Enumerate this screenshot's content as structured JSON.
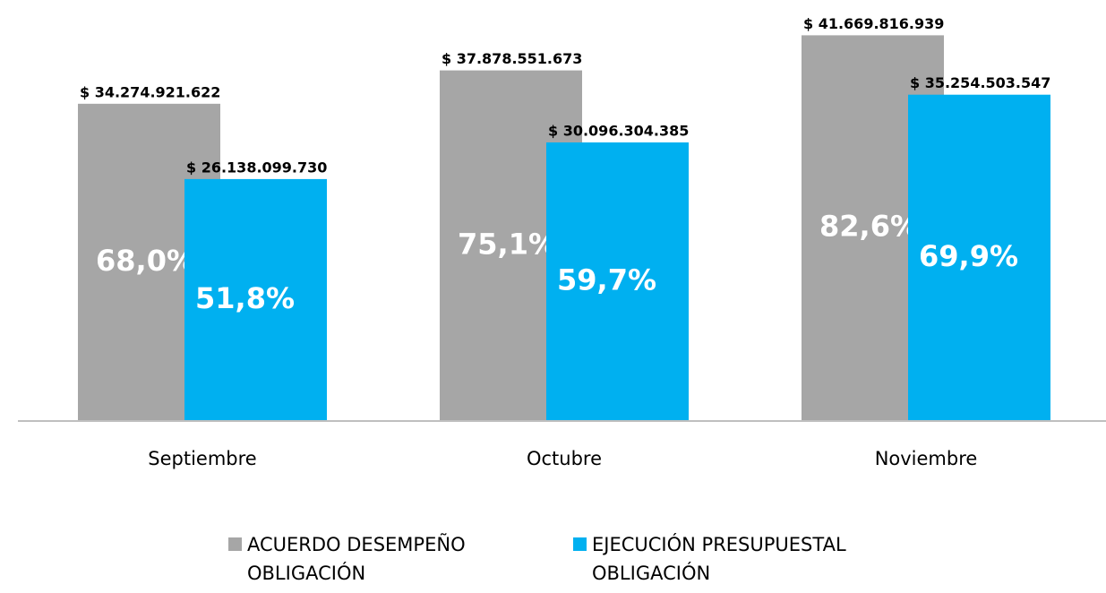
{
  "chart_data": {
    "type": "bar",
    "categories": [
      "Septiembre",
      "Octubre",
      "Noviembre"
    ],
    "series": [
      {
        "name": "ACUERDO DESEMPEÑO OBLIGACIÓN",
        "color": "#a6a6a6",
        "values": [
          34274921622,
          37878551673,
          41669816939
        ],
        "value_labels": [
          "$ 34.274.921.622",
          "$ 37.878.551.673",
          "$ 41.669.816.939"
        ],
        "percent_labels": [
          "68,0%",
          "75,1%",
          "82,6%"
        ]
      },
      {
        "name": "EJECUCIÓN PRESUPUESTAL OBLIGACIÓN",
        "color": "#00b0f0",
        "values": [
          26138099730,
          30096304385,
          35254503547
        ],
        "value_labels": [
          "$ 26.138.099.730",
          "$ 30.096.304.385",
          "$ 35.254.503.547"
        ],
        "percent_labels": [
          "51,8%",
          "59,7%",
          "69,9%"
        ]
      }
    ],
    "ylim": [
      0,
      45000000000
    ]
  }
}
